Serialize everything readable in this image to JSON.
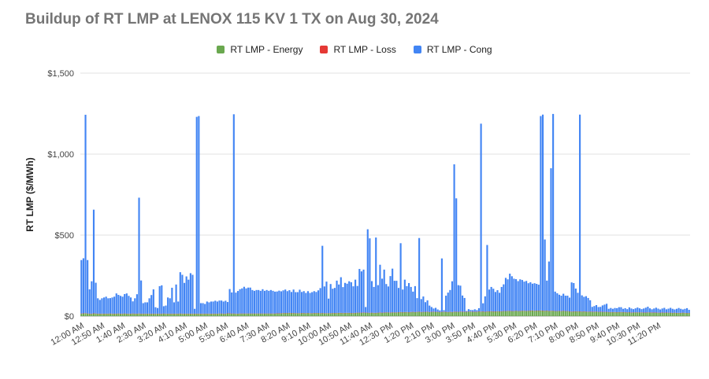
{
  "chart_data": {
    "type": "bar",
    "stacked": true,
    "title": "Buildup of RT LMP at LENOX 115 KV 1 TX on Aug 30, 2024",
    "xlabel": "",
    "ylabel": "RT LMP ($/MWh)",
    "ylim": [
      0,
      1500
    ],
    "yticks": [
      "$1,500",
      "$1,000",
      "$500",
      "$0"
    ],
    "ytick_values": [
      1500,
      1000,
      500,
      0
    ],
    "grid": true,
    "legend_position": "top",
    "xtick_labels": [
      "12:00 AM",
      "12:50 AM",
      "1:40 AM",
      "2:30 AM",
      "3:20 AM",
      "4:10 AM",
      "5:00 AM",
      "5:50 AM",
      "6:40 AM",
      "7:30 AM",
      "8:20 AM",
      "9:10 AM",
      "10:00 AM",
      "10:50 AM",
      "11:40 AM",
      "12:30 PM",
      "1:20 PM",
      "2:10 PM",
      "3:00 PM",
      "3:50 PM",
      "4:40 PM",
      "5:30 PM",
      "6:20 PM",
      "7:10 PM",
      "8:00 PM",
      "8:50 PM",
      "9:40 PM",
      "10:30 PM",
      "11:20 PM"
    ],
    "interval_minutes": 5,
    "series": [
      {
        "name": "RT LMP - Energy",
        "color": "#6aa84f",
        "values": [
          15,
          16,
          17,
          15,
          14,
          14,
          16,
          15,
          14,
          14,
          14,
          14,
          14,
          14,
          15,
          14,
          14,
          14,
          15,
          14,
          14,
          15,
          14,
          14,
          14,
          15,
          14,
          14,
          15,
          14,
          14,
          14,
          14,
          14,
          14,
          14,
          14,
          14,
          14,
          14,
          15,
          14,
          14,
          14,
          14,
          14,
          14,
          14,
          15,
          14,
          14,
          14,
          14,
          14,
          14,
          14,
          14,
          14,
          14,
          14,
          14,
          14,
          14,
          14,
          14,
          14,
          14,
          15,
          15,
          14,
          14,
          16,
          16,
          15,
          15,
          14,
          14,
          15,
          15,
          15,
          15,
          15,
          15,
          15,
          15,
          15,
          15,
          15,
          15,
          15,
          15,
          15,
          15,
          15,
          15,
          16,
          16,
          17,
          18,
          18,
          18,
          19,
          18,
          18,
          17,
          17,
          17,
          18,
          18,
          17,
          18,
          17,
          17,
          18,
          18,
          18,
          17,
          18,
          17,
          17,
          17,
          17,
          18,
          18,
          18,
          19,
          19,
          18,
          19,
          19,
          19,
          18,
          18,
          19,
          20,
          20,
          20,
          21,
          20,
          20,
          19,
          20,
          19,
          19,
          20,
          21,
          20,
          21,
          22,
          22,
          21,
          22,
          22,
          22,
          23,
          24,
          23,
          24,
          24,
          23,
          24,
          25,
          24,
          25,
          26,
          24,
          25,
          25,
          26,
          24,
          25,
          26,
          25,
          25,
          24,
          25,
          26,
          25,
          24,
          25,
          24,
          26,
          26,
          25,
          27,
          26,
          26,
          26,
          27,
          27,
          26,
          26,
          26,
          28,
          27,
          28,
          26,
          28,
          28,
          29,
          28,
          28,
          29,
          28,
          29,
          30,
          30,
          31,
          31,
          30,
          30,
          32,
          30,
          31,
          32,
          32,
          31,
          32,
          33,
          34,
          32,
          33,
          33,
          34,
          33,
          32,
          33,
          31,
          32,
          32,
          30,
          30,
          31,
          30,
          32,
          30,
          30,
          28,
          27,
          28,
          29,
          28,
          28,
          27,
          28,
          27,
          26,
          27,
          26,
          26,
          27,
          25,
          26,
          25,
          25,
          25,
          24,
          24,
          24,
          24,
          23,
          24,
          24,
          24,
          23,
          22,
          23,
          21,
          22,
          22,
          22,
          22,
          22,
          21,
          21,
          22,
          22,
          21,
          21,
          21,
          20,
          20,
          21,
          20,
          21,
          20,
          20,
          19,
          20,
          19,
          19,
          19,
          20,
          19,
          18,
          18
        ]
      },
      {
        "name": "RT LMP - Loss",
        "color": "#e53935",
        "values": [
          1,
          1,
          1,
          1,
          1,
          1,
          1,
          1,
          1,
          1,
          1,
          1,
          1,
          1,
          1,
          1,
          1,
          1,
          1,
          1,
          1,
          1,
          1,
          1,
          1,
          1,
          1,
          1,
          1,
          1,
          1,
          1,
          1,
          1,
          1,
          1,
          1,
          1,
          1,
          1,
          1,
          1,
          1,
          1,
          1,
          1,
          1,
          1,
          1,
          1,
          1,
          1,
          1,
          1,
          1,
          1,
          1,
          1,
          1,
          1,
          1,
          1,
          1,
          1,
          1,
          1,
          1,
          1,
          1,
          1,
          1,
          1,
          1,
          1,
          1,
          1,
          1,
          1,
          1,
          1,
          1,
          1,
          1,
          1,
          1,
          1,
          1,
          1,
          1,
          1,
          1,
          1,
          1,
          1,
          1,
          1,
          1,
          1,
          1,
          1,
          1,
          1,
          1,
          1,
          1,
          1,
          1,
          1,
          1,
          1,
          1,
          1,
          1,
          1,
          1,
          1,
          1,
          1,
          1,
          1,
          1,
          1,
          1,
          1,
          1,
          1,
          1,
          1,
          1,
          1,
          1,
          1,
          1,
          1,
          1,
          1,
          1,
          1,
          1,
          1,
          1,
          1,
          1,
          1,
          1,
          1,
          1,
          1,
          1,
          1,
          1,
          1,
          1,
          1,
          1,
          1,
          1,
          1,
          1,
          1,
          1,
          1,
          1,
          1,
          1,
          1,
          1,
          1,
          1,
          1,
          1,
          1,
          1,
          1,
          1,
          1,
          1,
          1,
          1,
          1,
          1,
          1,
          1,
          1,
          1,
          1,
          1,
          1,
          1,
          1,
          1,
          1,
          1,
          1,
          1,
          1,
          1,
          1,
          1,
          1,
          1,
          1,
          1,
          1,
          1,
          1,
          1,
          1,
          1,
          1,
          1,
          1,
          1,
          1,
          1,
          1,
          1,
          1,
          1,
          1,
          1,
          1,
          1,
          1,
          1,
          1,
          1,
          1,
          1,
          1,
          1,
          1,
          1,
          1,
          1,
          1,
          1,
          1,
          1,
          1,
          1,
          1,
          1,
          1,
          1,
          1,
          1,
          1,
          1,
          1,
          1,
          1,
          1,
          1,
          1,
          1,
          1,
          1,
          1,
          1,
          1,
          1,
          1,
          1,
          1,
          1,
          1,
          1,
          1,
          1,
          1,
          1,
          1,
          1,
          1,
          1,
          1,
          1,
          1,
          1,
          1,
          1,
          1,
          1,
          1,
          1,
          1,
          1,
          1,
          1,
          1,
          1,
          1,
          1,
          1,
          1,
          1,
          1,
          1,
          1
        ]
      },
      {
        "name": "RT LMP - Cong",
        "color": "#4285f4",
        "values": [
          330,
          340,
          1225,
          330,
          150,
          200,
          640,
          190,
          95,
          85,
          95,
          100,
          105,
          95,
          95,
          100,
          105,
          125,
          115,
          110,
          105,
          120,
          125,
          110,
          100,
          75,
          95,
          120,
          715,
          205,
          65,
          70,
          70,
          95,
          115,
          150,
          40,
          35,
          170,
          175,
          45,
          50,
          100,
          95,
          160,
          70,
          180,
          75,
          255,
          240,
          190,
          230,
          210,
          250,
          240,
          30,
          1215,
          1220,
          65,
          65,
          60,
          75,
          70,
          75,
          75,
          80,
          75,
          80,
          80,
          75,
          80,
          70,
          150,
          130,
          1230,
          130,
          140,
          150,
          155,
          165,
          155,
          160,
          160,
          145,
          140,
          145,
          145,
          140,
          150,
          140,
          145,
          140,
          145,
          140,
          135,
          135,
          140,
          135,
          140,
          145,
          135,
          140,
          130,
          145,
          130,
          130,
          145,
          130,
          135,
          125,
          135,
          125,
          130,
          135,
          130,
          140,
          155,
          415,
          165,
          195,
          90,
          180,
          150,
          155,
          200,
          175,
          220,
          160,
          185,
          180,
          195,
          190,
          165,
          205,
          165,
          270,
          255,
          265,
          35,
          515,
          460,
          195,
          160,
          465,
          170,
          295,
          210,
          265,
          175,
          160,
          225,
          270,
          195,
          195,
          150,
          425,
          140,
          200,
          160,
          180,
          155,
          125,
          160,
          85,
          455,
          80,
          95,
          60,
          70,
          40,
          30,
          20,
          25,
          15,
          10,
          330,
          10,
          100,
          120,
          135,
          190,
          910,
          700,
          165,
          160,
          100,
          85,
          5,
          15,
          10,
          10,
          15,
          10,
          20,
          1160,
          50,
          95,
          410,
          135,
          150,
          140,
          120,
          130,
          115,
          150,
          165,
          205,
          195,
          230,
          215,
          200,
          195,
          185,
          195,
          190,
          180,
          185,
          170,
          175,
          165,
          170,
          165,
          160,
          1200,
          1210,
          440,
          185,
          305,
          880,
          1215,
          120,
          110,
          100,
          95,
          105,
          95,
          95,
          85,
          180,
          175,
          140,
          115,
          1215,
          100,
          90,
          95,
          85,
          70,
          30,
          35,
          40,
          30,
          30,
          40,
          45,
          50,
          20,
          25,
          20,
          25,
          25,
          30,
          30,
          20,
          25,
          20,
          30,
          25,
          20,
          25,
          30,
          25,
          20,
          25,
          30,
          35,
          25,
          20,
          25,
          30,
          25,
          20,
          25,
          30,
          20,
          25,
          30,
          25,
          20,
          25,
          30,
          25,
          20,
          25,
          30,
          20,
          25
        ]
      }
    ]
  }
}
